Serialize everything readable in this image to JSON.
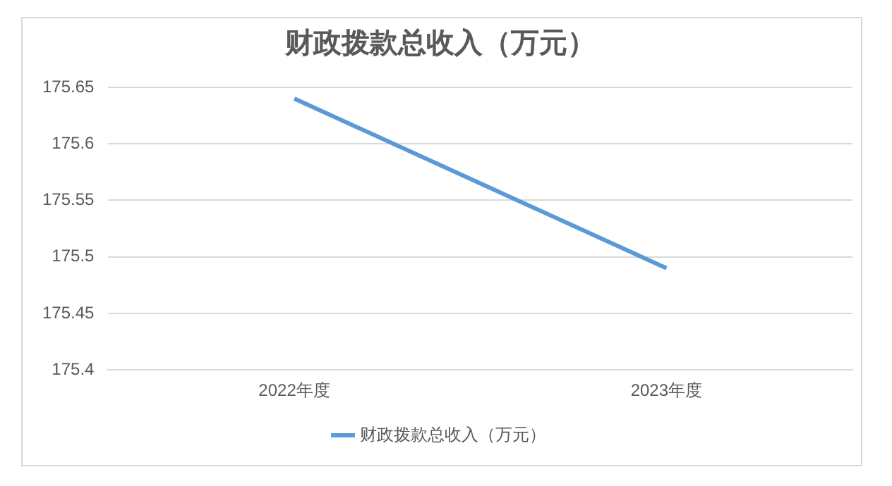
{
  "chart_data": {
    "type": "line",
    "title": "财政拨款总收入（万元）",
    "categories": [
      "2022年度",
      "2023年度"
    ],
    "series": [
      {
        "name": "财政拨款总收入（万元）",
        "color": "#5b9bd5",
        "values": [
          175.64,
          175.49
        ]
      }
    ],
    "ylim": [
      175.4,
      175.65
    ],
    "yticks": [
      175.4,
      175.45,
      175.5,
      175.55,
      175.6,
      175.65
    ],
    "grid": "y",
    "legend": "bottom",
    "marker": "none",
    "line_style": "solid"
  }
}
